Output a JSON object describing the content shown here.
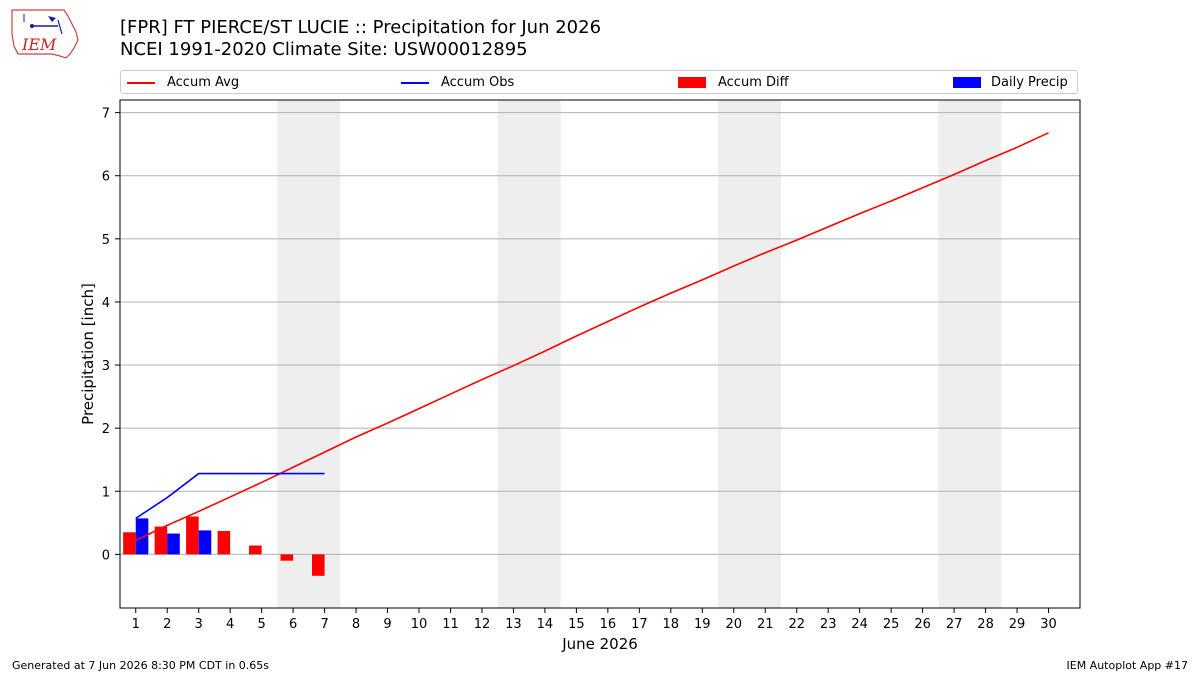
{
  "title_line1": "[FPR] FT PIERCE/ST LUCIE :: Precipitation for Jun 2026",
  "title_line2": "NCEI 1991-2020 Climate Site: USW00012895",
  "logo_text": "IEM",
  "footer_left": "Generated at 7 Jun 2026 8:30 PM CDT in 0.65s",
  "footer_right": "IEM Autoplot App #17",
  "colors": {
    "avg": "#ff0000",
    "obs": "#0000ff",
    "diff": "#ff0000",
    "daily": "#0000ff",
    "weekend": "#eeeeee",
    "grid": "#b0b0b0"
  },
  "chart_data": {
    "type": "bar",
    "xlabel": "June 2026",
    "ylabel": "Precipitation [inch]",
    "xlim": [
      0.5,
      31.0
    ],
    "ylim": [
      -0.85,
      7.2
    ],
    "x_ticks": [
      1,
      2,
      3,
      4,
      5,
      6,
      7,
      8,
      9,
      10,
      11,
      12,
      13,
      14,
      15,
      16,
      17,
      18,
      19,
      20,
      21,
      22,
      23,
      24,
      25,
      26,
      27,
      28,
      29,
      30
    ],
    "y_ticks": [
      0,
      1,
      2,
      3,
      4,
      5,
      6,
      7
    ],
    "grid": "y",
    "legend": {
      "placement": "top",
      "entries": [
        {
          "key": "avg",
          "label": "Accum Avg",
          "kind": "line"
        },
        {
          "key": "obs",
          "label": "Accum Obs",
          "kind": "line"
        },
        {
          "key": "diff",
          "label": "Accum Diff",
          "kind": "bar"
        },
        {
          "key": "daily",
          "label": "Daily Precip",
          "kind": "bar"
        }
      ]
    },
    "weekend_days": [
      6,
      7,
      13,
      14,
      20,
      21,
      27,
      28
    ],
    "accum_avg": {
      "days": [
        1,
        2,
        3,
        4,
        5,
        6,
        7,
        8,
        9,
        10,
        11,
        12,
        13,
        14,
        15,
        16,
        17,
        18,
        19,
        20,
        21,
        22,
        23,
        24,
        25,
        26,
        27,
        28,
        29,
        30
      ],
      "values": [
        0.22,
        0.46,
        0.68,
        0.91,
        1.14,
        1.38,
        1.62,
        1.86,
        2.08,
        2.31,
        2.54,
        2.77,
        2.99,
        3.22,
        3.46,
        3.69,
        3.92,
        4.14,
        4.35,
        4.57,
        4.78,
        4.98,
        5.19,
        5.4,
        5.6,
        5.81,
        6.02,
        6.24,
        6.45,
        6.68
      ]
    },
    "accum_obs": {
      "days": [
        1,
        2,
        3,
        4,
        5,
        6,
        7
      ],
      "values": [
        0.57,
        0.9,
        1.28,
        1.28,
        1.28,
        1.28,
        1.28
      ]
    },
    "accum_diff": {
      "days": [
        1,
        2,
        3,
        4,
        5,
        6,
        7
      ],
      "values": [
        0.35,
        0.44,
        0.6,
        0.37,
        0.14,
        -0.1,
        -0.34
      ]
    },
    "daily_precip": {
      "days": [
        1,
        2,
        3,
        4,
        5,
        6,
        7
      ],
      "values": [
        0.57,
        0.33,
        0.38,
        0,
        0,
        0,
        0
      ]
    }
  }
}
